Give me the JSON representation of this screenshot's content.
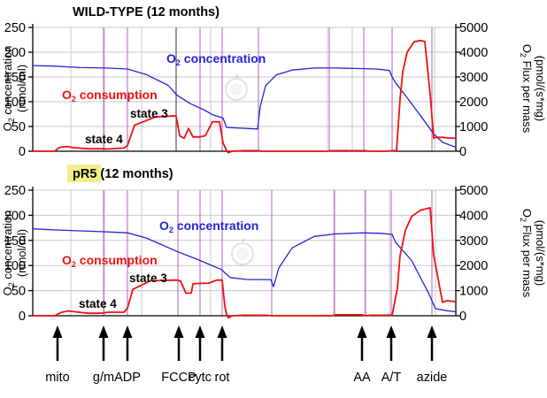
{
  "colors": {
    "o2_concentration": "#2323d8",
    "o2_consumption": "#ee1111",
    "event_line": "#b060c0",
    "grid": "#c8c8c8",
    "highlight": "#f4ee8a"
  },
  "panels": {
    "top": {
      "title": "WILD-TYPE (12 months)",
      "ylabel_left": "O2 concentration (nmol/ml)",
      "ylabel_left_parts": {
        "pre": "O",
        "sub": "2",
        "post": " concentration",
        "line2": "(nmol/ml)"
      },
      "ylabel_right": "O2 Flux per mass (pmol/(s*mg)",
      "ylabel_right_parts": {
        "pre": "O",
        "sub": "2",
        "post": " Flux per mass",
        "line2": "(pmol/(s*mg)"
      },
      "annotations": {
        "o2_concentration": {
          "pre": "O",
          "sub": "2",
          "post": " concentration"
        },
        "o2_consumption": {
          "pre": "O",
          "sub": "2",
          "post": " consumption"
        },
        "state3": "state 3",
        "state4": "state 4"
      }
    },
    "bottom": {
      "title_highlight": "pR5",
      "title_rest": " (12 months)",
      "ylabel_left_parts": {
        "pre": "O",
        "sub": "2",
        "post": " concentration",
        "line2": "(nmol/ml)"
      },
      "ylabel_right_parts": {
        "pre": "O",
        "sub": "2",
        "post": " Flux per mass",
        "line2": "(pmol/(s*mg)"
      },
      "annotations": {
        "o2_concentration": {
          "pre": "O",
          "sub": "2",
          "post": " concentration"
        },
        "o2_consumption": {
          "pre": "O",
          "sub": "2",
          "post": " consumption"
        },
        "state3": "state 3",
        "state4": "state 4"
      }
    }
  },
  "events": [
    {
      "label": "mito",
      "t": 65
    },
    {
      "label": "g/m",
      "t": 117
    },
    {
      "label": "ADP",
      "t": 144
    },
    {
      "label": "FCCP",
      "t": 202
    },
    {
      "label": "cytc",
      "t": 226
    },
    {
      "label": "rot",
      "t": 251
    },
    {
      "label": "AA",
      "t": 409
    },
    {
      "label": "A/T",
      "t": 442
    },
    {
      "label": "azide",
      "t": 488
    }
  ],
  "chart_data": [
    {
      "type": "line",
      "title": "WILD-TYPE (12 months)",
      "ylabel": "O2 concentration (nmol/ml)",
      "y2label": "O2 Flux per mass (pmol/(s*mg)",
      "xlim": [
        37,
        515
      ],
      "ylim": [
        0,
        250
      ],
      "y2lim": [
        0,
        5000
      ],
      "yticks": [
        0,
        50,
        100,
        150,
        200,
        250
      ],
      "y2ticks": [
        0,
        1000,
        2000,
        3000,
        4000,
        5000
      ],
      "vgrid": [
        80,
        118,
        160,
        199,
        238,
        292,
        370,
        398,
        443,
        491
      ],
      "event_lines": [
        117,
        144,
        199,
        226,
        251,
        292,
        372,
        411,
        443,
        488
      ],
      "event_line_dark": 199,
      "series": [
        {
          "name": "O2 concentration",
          "axis": "left",
          "x": [
            37,
            60,
            90,
            120,
            144,
            165,
            190,
            200,
            215,
            230,
            240,
            252,
            256,
            291,
            294,
            300,
            312,
            330,
            355,
            380,
            405,
            425,
            440,
            443,
            447,
            460,
            475,
            490,
            500,
            515
          ],
          "y": [
            173,
            172,
            169,
            168,
            166,
            155,
            133,
            113,
            96,
            84,
            74,
            67,
            48,
            45,
            90,
            132,
            154,
            164,
            168,
            168,
            167,
            166,
            163,
            150,
            138,
            108,
            72,
            35,
            18,
            8
          ]
        },
        {
          "name": "O2 consumption",
          "axis": "right",
          "x": [
            37,
            62,
            65,
            68,
            75,
            85,
            100,
            110,
            117,
            121,
            140,
            144,
            152,
            175,
            196,
            199,
            203,
            208,
            213,
            218,
            226,
            232,
            240,
            248,
            252,
            256,
            258,
            262,
            275,
            292,
            296,
            370,
            373,
            378,
            400,
            404,
            409,
            413,
            418,
            436,
            443,
            448,
            452,
            455,
            460,
            468,
            476,
            480,
            486,
            490,
            493,
            500,
            506,
            515
          ],
          "y": [
            0,
            0,
            100,
            160,
            190,
            140,
            100,
            100,
            100,
            90,
            130,
            230,
            1050,
            1380,
            1430,
            1420,
            620,
            520,
            920,
            580,
            580,
            630,
            1190,
            1190,
            330,
            30,
            -60,
            0,
            20,
            20,
            0,
            0,
            20,
            20,
            20,
            20,
            20,
            20,
            0,
            0,
            20,
            20,
            2100,
            3200,
            4000,
            4430,
            4470,
            4420,
            2300,
            530,
            560,
            560,
            540,
            520
          ]
        }
      ]
    },
    {
      "type": "line",
      "title": "pR5 (12 months)",
      "ylabel": "O2 concentration (nmol/ml)",
      "y2label": "O2 Flux per mass (pmol/(s*mg)",
      "xlim": [
        37,
        515
      ],
      "ylim": [
        0,
        250
      ],
      "y2lim": [
        0,
        5000
      ],
      "yticks": [
        0,
        50,
        100,
        150,
        200,
        250
      ],
      "y2ticks": [
        0,
        1000,
        2000,
        3000,
        4000,
        5000
      ],
      "vgrid": [
        80,
        118,
        160,
        201,
        238,
        307,
        377,
        412,
        440,
        492
      ],
      "event_lines": [
        117,
        144,
        201,
        226,
        251,
        307,
        378,
        413,
        442,
        488
      ],
      "event_line_dark": null,
      "series": [
        {
          "name": "O2 concentration",
          "axis": "left",
          "x": [
            37,
            60,
            90,
            120,
            144,
            165,
            200,
            226,
            250,
            260,
            280,
            306,
            309,
            315,
            330,
            355,
            380,
            410,
            430,
            443,
            447,
            465,
            485,
            492,
            505,
            515
          ],
          "y": [
            173,
            171,
            169,
            167,
            165,
            155,
            128,
            110,
            92,
            76,
            72,
            72,
            58,
            95,
            135,
            158,
            163,
            165,
            164,
            162,
            146,
            110,
            42,
            14,
            10,
            8
          ]
        },
        {
          "name": "O2 consumption",
          "axis": "right",
          "x": [
            37,
            62,
            66,
            70,
            77,
            85,
            100,
            110,
            117,
            122,
            140,
            144,
            150,
            170,
            200,
            204,
            210,
            216,
            218,
            226,
            236,
            245,
            251,
            254,
            256,
            258,
            262,
            275,
            300,
            307,
            375,
            379,
            395,
            409,
            413,
            418,
            430,
            443,
            449,
            452,
            458,
            465,
            475,
            486,
            490,
            500,
            505,
            515
          ],
          "y": [
            0,
            0,
            80,
            140,
            190,
            160,
            100,
            100,
            110,
            140,
            140,
            300,
            1050,
            1390,
            1420,
            1380,
            900,
            900,
            1270,
            1290,
            1300,
            1420,
            1420,
            380,
            60,
            -80,
            0,
            20,
            20,
            0,
            0,
            40,
            40,
            40,
            0,
            20,
            20,
            20,
            1100,
            2400,
            3400,
            3950,
            4200,
            4300,
            2400,
            530,
            600,
            560
          ]
        }
      ]
    }
  ]
}
